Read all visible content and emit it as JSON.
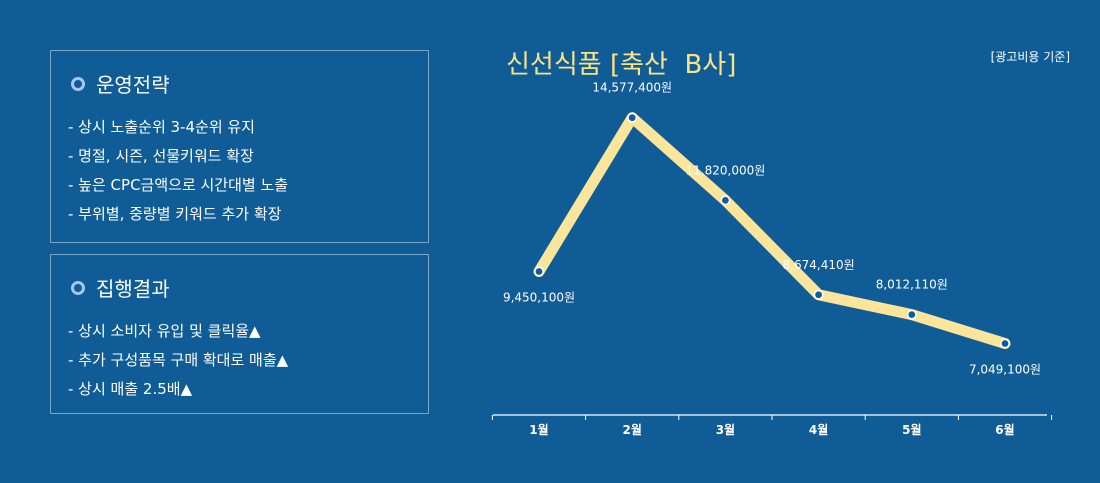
{
  "panels": [
    {
      "title": "운영전략",
      "items": [
        "- 상시 노출순위 3-4순위 유지",
        "- 명절, 시즌, 선물키워드 확장",
        "- 높은 CPC금액으로 시간대별 노출",
        "- 부위별, 중량별 키워드 추가 확장"
      ]
    },
    {
      "title": "집행결과",
      "items": [
        "- 상시 소비자 유입 및 클릭율▲",
        "- 추가 구성품목 구매 확대로 매출▲",
        "- 상시 매출 2.5배▲"
      ]
    }
  ],
  "chart_data": {
    "type": "line",
    "title": "신선식품 [축산  B사]",
    "note": "[광고비용 기준]",
    "categories": [
      "1월",
      "2월",
      "3월",
      "4월",
      "5월",
      "6월"
    ],
    "values": [
      9450100,
      14577400,
      11820000,
      8674410,
      8012110,
      7049100
    ],
    "data_labels": [
      "9,450,100원",
      "14,577,400원",
      "11,820,000원",
      "8,674,410원",
      "8,012,110원",
      "7,049,100원"
    ],
    "ylim": [
      4000000,
      17000000
    ],
    "grid": false,
    "line_color": "#fbe59a",
    "marker_color": "#0f5c96"
  }
}
